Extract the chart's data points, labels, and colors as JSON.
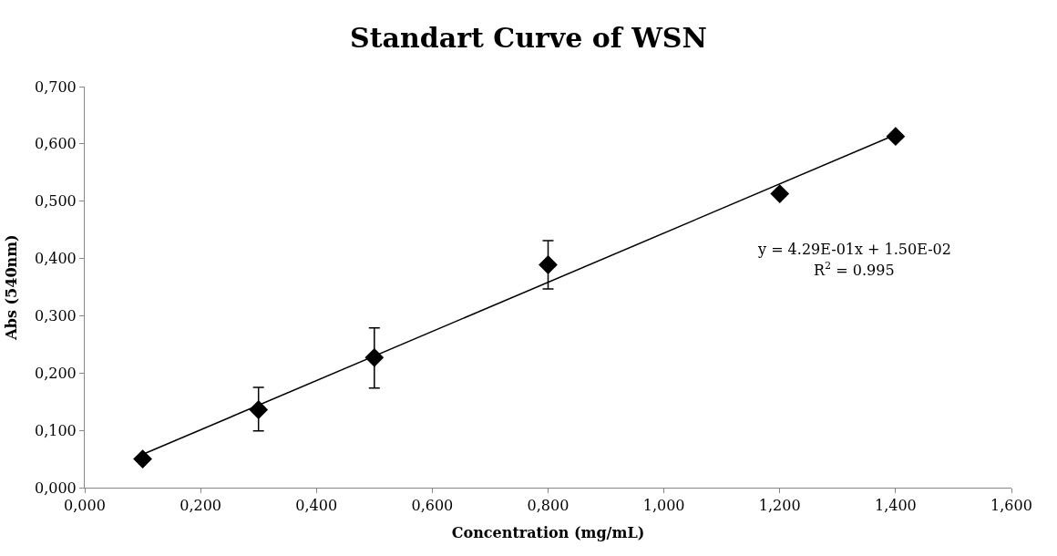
{
  "chart_data": {
    "type": "scatter",
    "title": "Standart Curve of WSN",
    "xlabel": "Concentration (mg/mL)",
    "ylabel": "Abs (540nm)",
    "xlim": [
      0,
      1.6
    ],
    "xticks": [
      {
        "value": 0,
        "label": "0,000"
      },
      {
        "value": 0.2,
        "label": "0,200"
      },
      {
        "value": 0.4,
        "label": "0,400"
      },
      {
        "value": 0.6,
        "label": "0,600"
      },
      {
        "value": 0.8,
        "label": "0,800"
      },
      {
        "value": 1.0,
        "label": "1,000"
      },
      {
        "value": 1.2,
        "label": "1,200"
      },
      {
        "value": 1.4,
        "label": "1,400"
      },
      {
        "value": 1.6,
        "label": "1,600"
      }
    ],
    "ylim": [
      0,
      0.7
    ],
    "yticks": [
      {
        "value": 0,
        "label": "0,000"
      },
      {
        "value": 0.1,
        "label": "0,100"
      },
      {
        "value": 0.2,
        "label": "0,200"
      },
      {
        "value": 0.3,
        "label": "0,300"
      },
      {
        "value": 0.4,
        "label": "0,400"
      },
      {
        "value": 0.5,
        "label": "0,500"
      },
      {
        "value": 0.6,
        "label": "0,600"
      },
      {
        "value": 0.7,
        "label": "0,700"
      }
    ],
    "grid": false,
    "legend": false,
    "marker": "diamond",
    "series": [
      {
        "color": "#000000",
        "x": [
          0.1,
          0.3,
          0.5,
          0.8,
          1.2,
          1.4
        ],
        "values": [
          0.05,
          0.136,
          0.227,
          0.389,
          0.513,
          0.613
        ],
        "errors": [
          null,
          [
            0.099,
            0.175
          ],
          [
            0.174,
            0.279
          ],
          [
            0.347,
            0.431
          ],
          null,
          null
        ]
      },
      {
        "type": "line",
        "color": "#000000",
        "x": [
          0.1,
          1.4
        ],
        "values": [
          0.058,
          0.616
        ],
        "marker": "none",
        "line_style": "solid"
      }
    ],
    "annotations": [
      "y = 4.29E-01x + 1.50E-02",
      "R$^{2}$ = 0.995"
    ]
  }
}
